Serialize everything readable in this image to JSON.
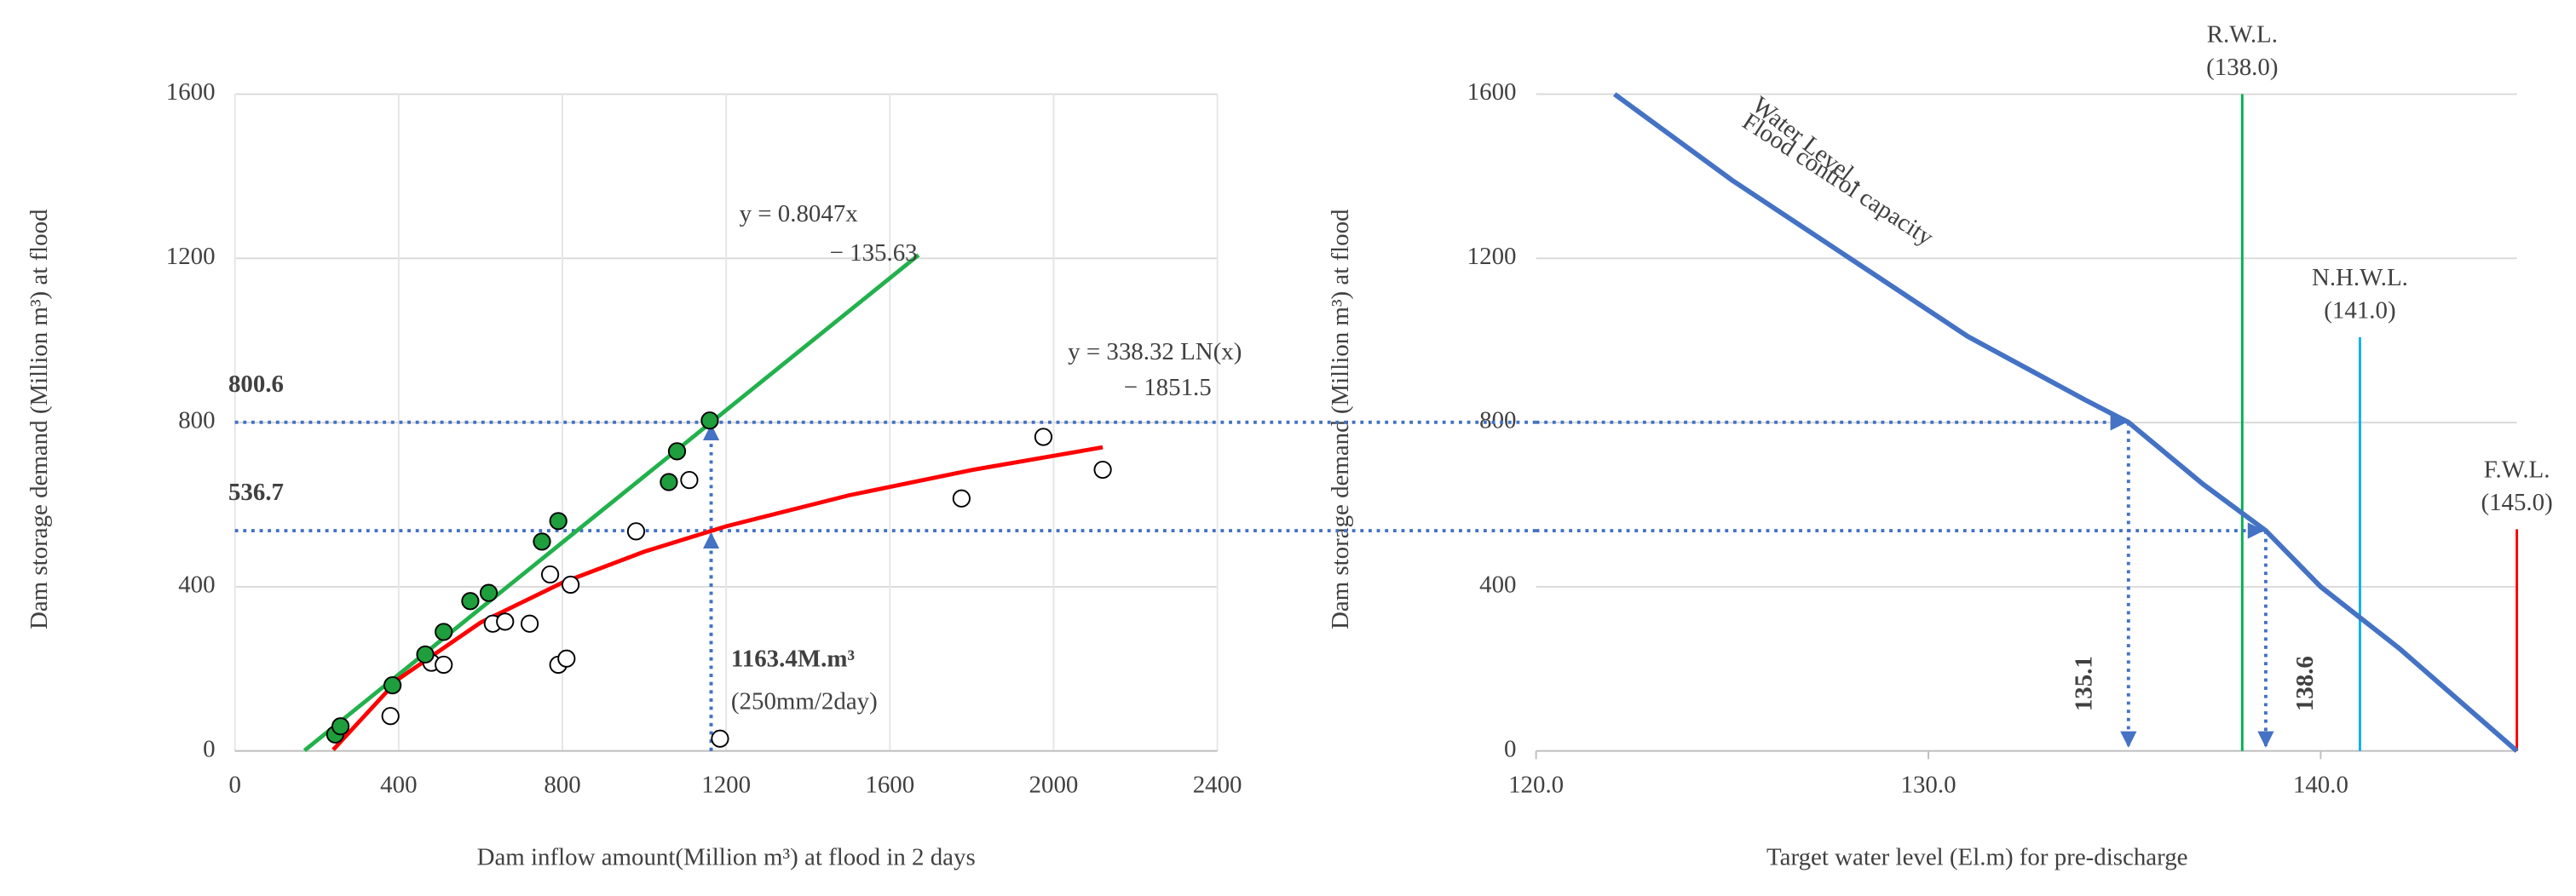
{
  "chart_data": [
    {
      "type": "scatter",
      "y_label": "Dam storage demand (Million m³) at flood",
      "x_label": "Dam inflow  amount(Million  m³) at flood in 2 days",
      "xlim": [
        0,
        2400
      ],
      "xticks": [
        0,
        400,
        800,
        1200,
        1600,
        2000,
        2400
      ],
      "ylim": [
        0,
        1600
      ],
      "yticks": [
        0,
        400,
        800,
        1200,
        1600
      ],
      "grid": true,
      "xgrid": true,
      "series": [
        {
          "color": "#ffffff",
          "edge": "#000000",
          "x": [
            380,
            480,
            510,
            630,
            660,
            720,
            770,
            790,
            810,
            820,
            980,
            1110,
            1185,
            1775,
            1975,
            2120
          ],
          "values": [
            85,
            215,
            210,
            310,
            315,
            310,
            430,
            210,
            225,
            405,
            535,
            660,
            30,
            615,
            765,
            685
          ]
        },
        {
          "color": "#1e9e3c",
          "edge": "#000000",
          "x": [
            245,
            258,
            385,
            465,
            510,
            575,
            620,
            750,
            790,
            1060,
            1080,
            1160
          ],
          "values": [
            40,
            60,
            160,
            235,
            290,
            365,
            385,
            510,
            560,
            655,
            730,
            805
          ]
        }
      ],
      "fits": [
        {
          "color": "#22b14c",
          "equation": [
            "y = 0.8047x",
            "− 135.63"
          ],
          "x": [
            170,
            1670
          ],
          "values": [
            1.17,
            1208.22
          ]
        },
        {
          "color": "#ff0000",
          "equation": [
            "y = 338.32  LN(x)",
            "− 1851.5"
          ],
          "x": [
            240,
            400,
            600,
            800,
            1000,
            1200,
            1500,
            1800,
            2120
          ],
          "values": [
            2.7,
            175.5,
            312.7,
            410.0,
            485.5,
            547.2,
            622.7,
            684.4,
            739.8
          ]
        }
      ],
      "guides": {
        "color": "#4472c4",
        "label_color": "#ff0000",
        "y": [
          800.6,
          536.7
        ],
        "x": [
          {
            "value": 1163.4,
            "label": "1163.4M.m³"
          }
        ],
        "note": "(250mm/2day)"
      }
    },
    {
      "type": "line",
      "y_label": "Dam storage demand (Million m³) at flood",
      "x_label": "Target water level (El.m) for pre-discharge",
      "xlim": [
        120,
        145
      ],
      "xticks": [
        {
          "value": 120,
          "label": "120.0"
        },
        {
          "value": 130,
          "label": "130.0"
        },
        {
          "value": 140,
          "label": "140.0"
        }
      ],
      "ylim": [
        0,
        1600
      ],
      "yticks": [
        0,
        400,
        800,
        1200,
        1600
      ],
      "grid": true,
      "series": [
        {
          "color": "#4472c4",
          "label": [
            "Water Level -",
            "Flood control capacity"
          ],
          "x": [
            122,
            125,
            128,
            131,
            134,
            135.1,
            137,
            138.6,
            140,
            142,
            145
          ],
          "values": [
            1600,
            1390,
            1200,
            1010,
            855,
            800.6,
            650,
            536.7,
            400,
            250,
            0
          ]
        }
      ],
      "reference_lines": [
        {
          "name": "R.W.L.",
          "x": {
            "value": 138,
            "label": "(138.0)"
          },
          "top": 1600,
          "color": "#00b050"
        },
        {
          "name": "N.H.W.L.",
          "x": {
            "value": 141,
            "label": "(141.0)"
          },
          "top": 1008,
          "color": "#00b0f0"
        },
        {
          "name": "F.W.L.",
          "x": {
            "value": 145,
            "label": "(145.0)"
          },
          "top": 540,
          "color": "#ff0000"
        }
      ],
      "targets": [
        {
          "level": 800.6,
          "value": 135.1
        },
        {
          "level": 536.7,
          "value": 138.6
        }
      ],
      "target_color": "#4472c4",
      "label_color": "#ff0000"
    }
  ]
}
